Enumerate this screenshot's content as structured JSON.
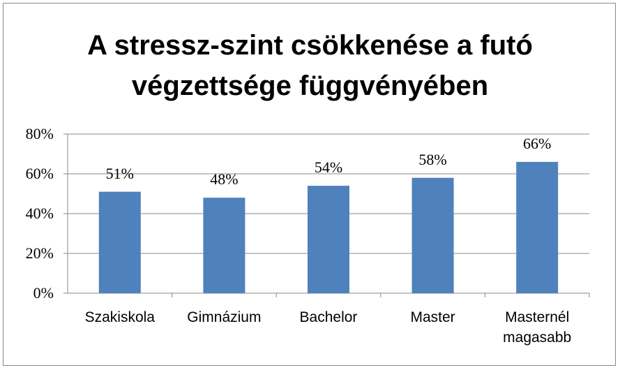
{
  "chart_data": {
    "type": "bar",
    "title": "A stressz-szint csökkenése a futó végzettsége függvényében",
    "categories": [
      "Szakiskola",
      "Gimnázium",
      "Bachelor",
      "Master",
      "Masternél magasabb"
    ],
    "values": [
      51,
      48,
      54,
      58,
      66
    ],
    "value_labels": [
      "51%",
      "48%",
      "54%",
      "58%",
      "66%"
    ],
    "color": "#4f81bd",
    "ylim": [
      0,
      80
    ],
    "yticks": [
      {
        "value": 0,
        "label": "0%"
      },
      {
        "value": 20,
        "label": "20%"
      },
      {
        "value": 40,
        "label": "40%"
      },
      {
        "value": 60,
        "label": "60%"
      },
      {
        "value": 80,
        "label": "80%"
      }
    ],
    "grid": true
  }
}
